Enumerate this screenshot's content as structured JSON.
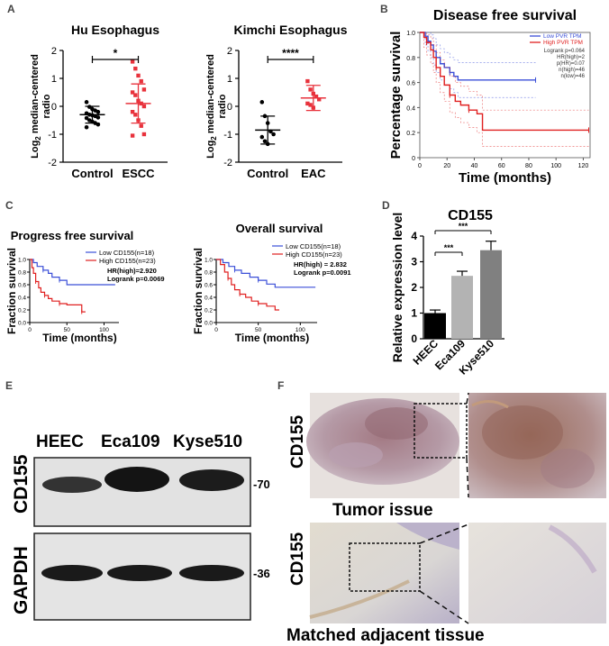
{
  "panels": {
    "A": "A",
    "B": "B",
    "C": "C",
    "D": "D",
    "E": "E",
    "F": "F"
  },
  "chart_data": [
    {
      "id": "A-left",
      "type": "scatter",
      "title": "Hu Esophagus",
      "ylabel": "Log2 median-centered radio",
      "ylabel_parts": {
        "pre": "Log",
        "sub": "2",
        "post": " median-centered",
        "line2": "radio"
      },
      "categories": [
        "Control",
        "ESCC"
      ],
      "ylim": [
        -2,
        2
      ],
      "yticks": [
        "2",
        "1",
        "0",
        "-1",
        "-2"
      ],
      "significance": "*",
      "series": [
        {
          "name": "Control",
          "color": "#000000",
          "values": [
            0.15,
            -0.02,
            -0.1,
            -0.15,
            -0.2,
            -0.25,
            -0.3,
            -0.32,
            -0.35,
            -0.4,
            -0.42,
            -0.5,
            -0.55,
            -0.6,
            -0.65,
            -0.75
          ],
          "mean": -0.3,
          "sd": 0.3
        },
        {
          "name": "ESCC",
          "color": "#e8323c",
          "values": [
            1.6,
            1.35,
            1.1,
            0.9,
            0.6,
            0.5,
            0.4,
            0.2,
            0.1,
            0.0,
            -0.2,
            -0.3,
            -0.5,
            -0.7,
            -1.0,
            -1.05
          ],
          "mean": 0.1,
          "sd": 0.7
        }
      ]
    },
    {
      "id": "A-right",
      "type": "scatter",
      "title": "Kimchi Esophagus",
      "ylabel": "Log2 median-centered radio",
      "ylabel_parts": {
        "pre": "Log",
        "sub": "2",
        "post": " median-centered",
        "line2": "radio"
      },
      "categories": [
        "Control",
        "EAC"
      ],
      "ylim": [
        -2,
        2
      ],
      "yticks": [
        "2",
        "1",
        "0",
        "-1",
        "-2"
      ],
      "significance": "****",
      "series": [
        {
          "name": "Control",
          "color": "#000000",
          "values": [
            0.15,
            -0.35,
            -0.6,
            -0.9,
            -1.0,
            -1.1,
            -1.25,
            -1.35
          ],
          "mean": -0.85,
          "sd": 0.5
        },
        {
          "name": "EAC",
          "color": "#e8323c",
          "values": [
            0.9,
            0.6,
            0.45,
            0.35,
            0.25,
            0.1,
            0.05,
            -0.05
          ],
          "mean": 0.3,
          "sd": 0.45
        }
      ]
    },
    {
      "id": "B",
      "type": "line",
      "title": "Disease free survival",
      "xlabel": "Time (months)",
      "ylabel": "Percentage survival",
      "xlim": [
        0,
        125
      ],
      "ylim": [
        0,
        1
      ],
      "xticks": [
        0,
        20,
        40,
        60,
        80,
        100,
        120
      ],
      "yticks": [
        0,
        0.2,
        0.4,
        0.6,
        0.8,
        1.0
      ],
      "ytick_labels": [
        "0",
        "0.2",
        "0.4",
        "0.6",
        "0.8",
        "1.0"
      ],
      "legend": [
        "Low PVR TPM",
        "High PVR TPM"
      ],
      "stats": [
        "Logrank p=0.064",
        "HR(high)=2",
        "p(HR)=0.07",
        "n(high)=46",
        "n(low)=46"
      ],
      "series": [
        {
          "name": "Low PVR TPM",
          "color": "#3b4fd8",
          "x": [
            0,
            4,
            6,
            8,
            10,
            12,
            15,
            18,
            22,
            25,
            28,
            85
          ],
          "y": [
            1.0,
            0.97,
            0.93,
            0.9,
            0.85,
            0.8,
            0.75,
            0.72,
            0.68,
            0.65,
            0.62,
            0.62
          ],
          "ci_upper": [
            1.0,
            1.0,
            1.0,
            0.98,
            0.95,
            0.9,
            0.87,
            0.84,
            0.8,
            0.78,
            0.76,
            0.76
          ],
          "ci_lower": [
            1.0,
            0.9,
            0.85,
            0.8,
            0.74,
            0.68,
            0.62,
            0.58,
            0.55,
            0.52,
            0.48,
            0.48
          ]
        },
        {
          "name": "High PVR TPM",
          "color": "#e02020",
          "x": [
            0,
            3,
            5,
            8,
            10,
            12,
            15,
            18,
            22,
            26,
            30,
            36,
            42,
            46,
            124
          ],
          "y": [
            1.0,
            0.96,
            0.92,
            0.86,
            0.8,
            0.72,
            0.65,
            0.58,
            0.5,
            0.45,
            0.42,
            0.38,
            0.35,
            0.22,
            0.22
          ],
          "ci_upper": [
            1.0,
            1.0,
            0.98,
            0.95,
            0.9,
            0.84,
            0.78,
            0.72,
            0.65,
            0.6,
            0.57,
            0.53,
            0.5,
            0.38,
            0.38
          ],
          "ci_lower": [
            1.0,
            0.88,
            0.82,
            0.75,
            0.68,
            0.6,
            0.52,
            0.45,
            0.36,
            0.32,
            0.28,
            0.24,
            0.2,
            0.09,
            0.09
          ]
        }
      ]
    },
    {
      "id": "C-left",
      "type": "line",
      "title": "Progress free survival",
      "xlabel": "Time (months)",
      "ylabel": "Fraction survival",
      "xlim": [
        0,
        120
      ],
      "ylim": [
        0,
        1
      ],
      "xticks": [
        0,
        50,
        100
      ],
      "yticks": [
        0,
        0.2,
        0.4,
        0.6,
        0.8,
        1.0
      ],
      "ytick_labels": [
        "0.0",
        "0.2",
        "0.4",
        "0.6",
        "0.8",
        "1.0"
      ],
      "legend": [
        "Low CD155(n=18)",
        "High CD155(n=23)"
      ],
      "stats": [
        "HR(high)=2.920",
        "Logrank p=0.0069"
      ],
      "series": [
        {
          "name": "Low CD155(n=18)",
          "color": "#3b4fd8",
          "x": [
            0,
            5,
            10,
            18,
            25,
            30,
            40,
            50,
            115
          ],
          "y": [
            1.0,
            0.95,
            0.89,
            0.83,
            0.78,
            0.72,
            0.67,
            0.6,
            0.6
          ]
        },
        {
          "name": "High CD155(n=23)",
          "color": "#e02020",
          "x": [
            0,
            3,
            5,
            8,
            12,
            15,
            20,
            25,
            30,
            40,
            50,
            62,
            70,
            75
          ],
          "y": [
            1.0,
            0.87,
            0.78,
            0.65,
            0.55,
            0.48,
            0.43,
            0.38,
            0.34,
            0.3,
            0.28,
            0.28,
            0.17,
            0.17
          ]
        }
      ]
    },
    {
      "id": "C-right",
      "type": "line",
      "title": "Overall survival",
      "xlabel": "Time (months)",
      "ylabel": "Fraction survival",
      "xlim": [
        0,
        120
      ],
      "ylim": [
        0,
        1
      ],
      "xticks": [
        0,
        50,
        100
      ],
      "yticks": [
        0,
        0.2,
        0.4,
        0.6,
        0.8,
        1.0
      ],
      "ytick_labels": [
        "0.0",
        "0.2",
        "0.4",
        "0.6",
        "0.8",
        "1.0"
      ],
      "legend": [
        "Low CD155(n=18)",
        "High CD155(n=23)"
      ],
      "stats": [
        "HR(high) = 2.832",
        "Logrank p=0.0091"
      ],
      "series": [
        {
          "name": "Low CD155(n=18)",
          "color": "#3b4fd8",
          "x": [
            0,
            8,
            15,
            22,
            30,
            40,
            50,
            60,
            70,
            118
          ],
          "y": [
            1.0,
            0.95,
            0.89,
            0.83,
            0.78,
            0.72,
            0.67,
            0.61,
            0.56,
            0.56
          ]
        },
        {
          "name": "High CD155(n=23)",
          "color": "#e02020",
          "x": [
            0,
            5,
            10,
            14,
            18,
            22,
            28,
            35,
            42,
            50,
            60,
            70,
            75
          ],
          "y": [
            1.0,
            0.92,
            0.8,
            0.7,
            0.6,
            0.52,
            0.45,
            0.4,
            0.34,
            0.3,
            0.26,
            0.2,
            0.2
          ]
        }
      ]
    },
    {
      "id": "D",
      "type": "bar",
      "title": "CD155",
      "ylabel": "Relative expression level",
      "categories": [
        "HEEC",
        "Eca109",
        "Kyse510"
      ],
      "values": [
        1.0,
        2.45,
        3.45
      ],
      "errors": [
        0.12,
        0.18,
        0.35
      ],
      "colors": [
        "#000000",
        "#b3b3b3",
        "#808080"
      ],
      "ylim": [
        0,
        4
      ],
      "yticks": [
        "0",
        "1",
        "2",
        "3",
        "4"
      ],
      "significance": [
        "***",
        "***"
      ]
    }
  ],
  "western_blot": {
    "lanes": [
      "HEEC",
      "Eca109",
      "Kyse510"
    ],
    "rows": [
      {
        "protein": "CD155",
        "kda": "-70"
      },
      {
        "protein": "GAPDH",
        "kda": "-36"
      }
    ]
  },
  "histology": {
    "rows": [
      {
        "stain": "CD155",
        "caption": "Tumor issue"
      },
      {
        "stain": "CD155",
        "caption": "Matched adjacent tissue"
      }
    ]
  }
}
